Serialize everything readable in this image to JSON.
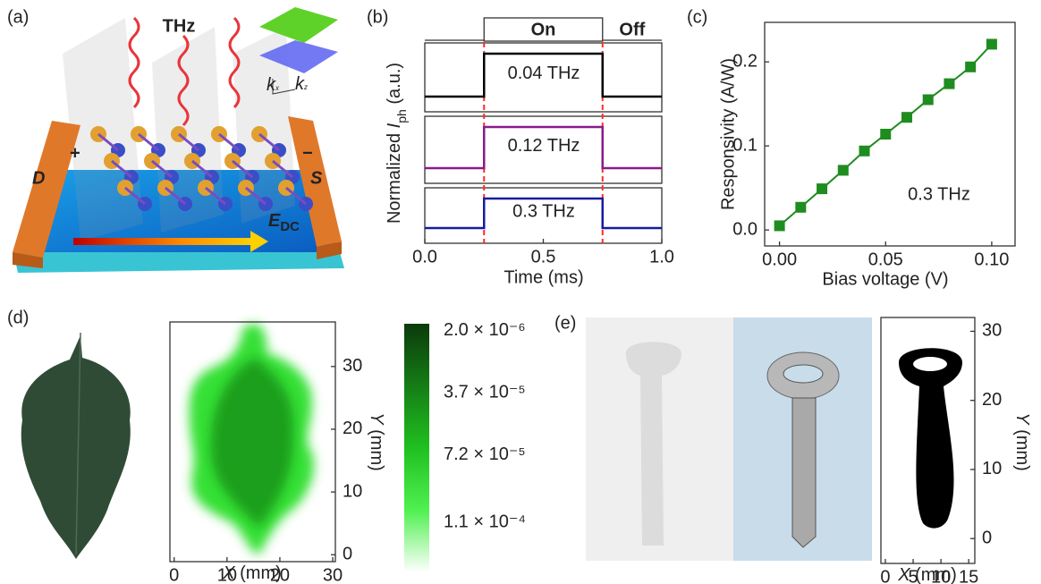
{
  "panel_labels": [
    "(a)",
    "(b)",
    "(c)",
    "(d)",
    "(e)"
  ],
  "illustration": {
    "wave_label": "THz",
    "left_electrode": "D",
    "right_electrode": "S",
    "plus": "+",
    "minus": "−",
    "field": "E",
    "field_sub": "DC",
    "kx": "k",
    "kx_sub": "x",
    "kz": "k",
    "kz_sub": "z"
  },
  "chart_data": [
    {
      "type": "step",
      "xlabel": "Time (ms)",
      "ylabel": {
        "before": "Normalized ",
        "symbol": "I",
        "sub": "ph",
        "after": " (a.u.)"
      },
      "xlim": [
        0,
        1
      ],
      "xticks": [
        {
          "value": 0,
          "label": "0.0"
        },
        0.5,
        {
          "value": 1,
          "label": "1.0"
        }
      ],
      "gate": {
        "labels": [
          "On",
          "Off"
        ],
        "edges": [
          0.25,
          0.75
        ],
        "color": "#ff2a2a"
      },
      "series": [
        {
          "name": "0.04 THz",
          "color": "#000000",
          "x": [
            0,
            0.25,
            0.25,
            0.75,
            0.75,
            1
          ],
          "values": [
            0,
            0,
            1,
            1,
            0,
            0
          ]
        },
        {
          "name": "0.12 THz",
          "color": "#8a1a8a",
          "x": [
            0,
            0.25,
            0.25,
            0.75,
            0.75,
            1
          ],
          "values": [
            0,
            0,
            1,
            1,
            0,
            0
          ]
        },
        {
          "name": "0.3 THz",
          "color": "#1a1aa0",
          "x": [
            0,
            0.25,
            0.25,
            0.75,
            0.75,
            1
          ],
          "values": [
            0,
            0,
            1,
            1,
            0,
            0
          ]
        }
      ]
    },
    {
      "type": "line",
      "xlabel": "Bias voltage (V)",
      "ylabel": "Responsivity (A/W)",
      "annotation": "0.3 THz",
      "color": "#1e8c1e",
      "marker": "square",
      "x": [
        0,
        0.01,
        0.02,
        0.03,
        0.04,
        0.05,
        0.06,
        0.07,
        0.08,
        0.09,
        0.1
      ],
      "values": [
        0.005,
        0.027,
        0.049,
        0.071,
        0.094,
        0.114,
        0.134,
        0.155,
        0.174,
        0.194,
        0.221
      ],
      "xlim": [
        -0.007,
        0.111
      ],
      "xticks": [
        {
          "value": 0,
          "label": "0.00"
        },
        0.05,
        {
          "value": 0.1,
          "label": "0.10"
        }
      ],
      "ylim": [
        -0.019,
        0.247
      ],
      "yticks": [
        {
          "value": 0,
          "label": "0.0"
        },
        0.1,
        0.2
      ]
    },
    {
      "type": "heatmap",
      "xlabel": {
        "symbol": "X",
        "after": " (mm)"
      },
      "ylabel": {
        "symbol": "Y",
        "after": " (mm)"
      },
      "xlim": [
        -0.8,
        30.5
      ],
      "xticks": [
        0,
        10,
        20,
        30
      ],
      "ylim": [
        -1.1,
        37.1
      ],
      "yticks": [
        0,
        10,
        20,
        30
      ],
      "clim": [
        -2e-06,
        0.000138
      ],
      "cticks": [
        {
          "value": 2e-06,
          "label": "2.0 × 10⁻⁶"
        },
        {
          "value": 3.7e-05,
          "label": "3.7 × 10⁻⁵"
        },
        {
          "value": 7.2e-05,
          "label": "7.2 × 10⁻⁵"
        },
        {
          "value": 0.00011,
          "label": "1.1 × 10⁻⁴"
        }
      ]
    },
    {
      "type": "image",
      "xlabel": {
        "symbol": "X",
        "after": " (mm)"
      },
      "ylabel": {
        "symbol": "Y",
        "after": " (mm)"
      },
      "xlim": [
        -0.8,
        16.1
      ],
      "xticks": [
        0,
        5,
        10,
        15
      ],
      "ylim": [
        -3.6,
        32
      ],
      "yticks": [
        0,
        10,
        20,
        30
      ]
    }
  ]
}
